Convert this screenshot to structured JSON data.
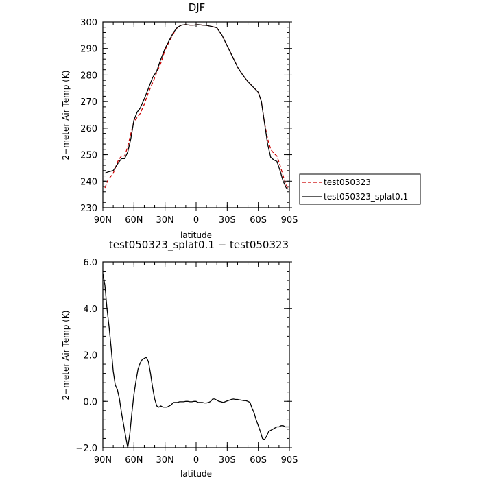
{
  "chart_data": [
    {
      "type": "line",
      "title": "DJF",
      "xlabel": "latitude",
      "ylabel": "2−meter Air Temp (K)",
      "xlim": [
        90,
        -90
      ],
      "ylim": [
        230,
        300
      ],
      "yticks": [
        230,
        240,
        250,
        260,
        270,
        280,
        290,
        300
      ],
      "yticklabels": [
        "230",
        "240",
        "250",
        "260",
        "270",
        "280",
        "290",
        "300"
      ],
      "xticks": [
        90,
        60,
        30,
        0,
        -30,
        -60,
        -90
      ],
      "xticklabels": [
        "90N",
        "60N",
        "30N",
        "0",
        "30S",
        "60S",
        "90S"
      ],
      "legend_position": "right",
      "series": [
        {
          "name": "test050323",
          "color": "#cc0000",
          "style": "dashed",
          "x": [
            88,
            85,
            80,
            75,
            72,
            69,
            66,
            63,
            60,
            57,
            54,
            50,
            46,
            42,
            38,
            34,
            30,
            26,
            22,
            18,
            14,
            10,
            6,
            2,
            -2,
            -6,
            -10,
            -15,
            -20,
            -25,
            -30,
            -35,
            -40,
            -45,
            -50,
            -55,
            -60,
            -63,
            -66,
            -69,
            -72,
            -75,
            -78,
            -81,
            -84,
            -87,
            -89
          ],
          "values": [
            237.5,
            240.5,
            243,
            248,
            249.5,
            249.5,
            253,
            258,
            262.5,
            264,
            265.5,
            269,
            273.5,
            277,
            281,
            284.5,
            289.5,
            292.5,
            295.5,
            298,
            298.8,
            299,
            298.8,
            298.8,
            299,
            298.8,
            298.7,
            298.3,
            297.8,
            295,
            291,
            287,
            283,
            280,
            277.5,
            275.5,
            273.5,
            270,
            262,
            256,
            252,
            250.5,
            249.5,
            246,
            242,
            238.5,
            237.5
          ]
        },
        {
          "name": "test050323_splat0.1",
          "color": "#000000",
          "style": "solid",
          "x": [
            88,
            85,
            80,
            75,
            72,
            69,
            66,
            63,
            60,
            57,
            54,
            50,
            46,
            42,
            38,
            34,
            30,
            26,
            22,
            18,
            14,
            10,
            6,
            2,
            -2,
            -6,
            -10,
            -15,
            -20,
            -25,
            -30,
            -35,
            -40,
            -45,
            -50,
            -55,
            -60,
            -63,
            -66,
            -69,
            -72,
            -75,
            -78,
            -81,
            -84,
            -87,
            -89
          ],
          "values": [
            243,
            243.5,
            244,
            247,
            248.5,
            248.5,
            251,
            256,
            263,
            266,
            267.5,
            271,
            275,
            279,
            281.5,
            286,
            290,
            293,
            296,
            298,
            298.8,
            299,
            298.8,
            298.8,
            299,
            298.8,
            298.7,
            298.3,
            297.8,
            295,
            291,
            287,
            283,
            280,
            277.5,
            275.5,
            273.5,
            270,
            262,
            254,
            249,
            248,
            247.5,
            244,
            240,
            237.5,
            237
          ]
        }
      ]
    },
    {
      "type": "line",
      "title": "test050323_splat0.1 − test050323",
      "xlabel": "latitude",
      "ylabel": "2−meter Air Temp (K)",
      "xlim": [
        90,
        -90
      ],
      "ylim": [
        -2,
        6
      ],
      "yticks": [
        -2,
        0,
        2,
        4,
        6
      ],
      "yticklabels": [
        "−2.0",
        "0.0",
        "2.0",
        "4.0",
        "6.0"
      ],
      "xticks": [
        90,
        60,
        30,
        0,
        -30,
        -60,
        -90
      ],
      "xticklabels": [
        "90N",
        "60N",
        "30N",
        "0",
        "30S",
        "60S",
        "90S"
      ],
      "series": [
        {
          "color": "#000000",
          "style": "solid",
          "x": [
            90,
            88,
            86,
            84,
            82,
            80,
            78,
            76,
            74,
            72,
            70,
            68,
            66,
            64,
            62,
            60,
            58,
            56,
            54,
            52,
            50,
            48,
            46,
            44,
            42,
            40,
            38,
            36,
            34,
            32,
            30,
            28,
            26,
            24,
            22,
            20,
            18,
            16,
            14,
            12,
            10,
            8,
            6,
            4,
            2,
            0,
            -2,
            -4,
            -6,
            -8,
            -10,
            -12,
            -14,
            -16,
            -18,
            -20,
            -22,
            -24,
            -26,
            -28,
            -30,
            -32,
            -34,
            -36,
            -38,
            -40,
            -42,
            -44,
            -46,
            -48,
            -50,
            -52,
            -54,
            -56,
            -58,
            -60,
            -62,
            -64,
            -66,
            -68,
            -70,
            -72,
            -74,
            -76,
            -78,
            -80,
            -82,
            -84,
            -86,
            -88,
            -90
          ],
          "values": [
            5.5,
            5.0,
            4.0,
            3.2,
            2.3,
            1.3,
            0.7,
            0.5,
            0.1,
            -0.5,
            -1.0,
            -1.5,
            -2.0,
            -1.4,
            -0.5,
            0.3,
            0.9,
            1.4,
            1.65,
            1.8,
            1.85,
            1.9,
            1.7,
            1.2,
            0.6,
            0.1,
            -0.2,
            -0.25,
            -0.2,
            -0.25,
            -0.25,
            -0.25,
            -0.2,
            -0.15,
            -0.05,
            -0.05,
            -0.05,
            -0.02,
            -0.02,
            -0.02,
            0.0,
            0.0,
            -0.02,
            -0.02,
            0.0,
            0.0,
            -0.05,
            -0.05,
            -0.05,
            -0.07,
            -0.07,
            -0.05,
            0.0,
            0.1,
            0.1,
            0.05,
            0.0,
            -0.02,
            -0.05,
            -0.02,
            0.02,
            0.05,
            0.08,
            0.1,
            0.08,
            0.08,
            0.06,
            0.05,
            0.03,
            0.03,
            0.0,
            -0.05,
            -0.3,
            -0.5,
            -0.8,
            -1.05,
            -1.3,
            -1.6,
            -1.65,
            -1.5,
            -1.3,
            -1.25,
            -1.2,
            -1.15,
            -1.1,
            -1.1,
            -1.05,
            -1.05,
            -1.1,
            -1.1,
            -1.1
          ]
        }
      ]
    }
  ]
}
